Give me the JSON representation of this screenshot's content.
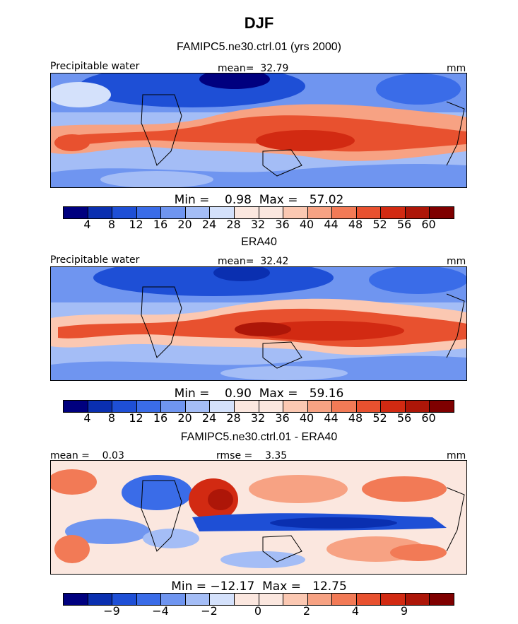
{
  "page_title": "DJF",
  "panels": [
    {
      "title": "FAMIPC5.ne30.ctrl.01 (yrs 2000)",
      "left_label": "Precipitable water",
      "center_label": "mean=  32.79",
      "unit": "mm",
      "minmax": "Min =    0.98  Max =   57.02",
      "colorbar_ticks": [
        "4",
        "8",
        "12",
        "16",
        "20",
        "24",
        "28",
        "32",
        "36",
        "40",
        "44",
        "48",
        "52",
        "56",
        "60"
      ],
      "colorbar_colors": [
        "#00007f",
        "#0a2fb0",
        "#1e4fd6",
        "#3a6ce8",
        "#6f95f0",
        "#a4bdf6",
        "#d4e1fb",
        "#fbe7df",
        "#fbc8b2",
        "#f7a283",
        "#f27a56",
        "#e8512f",
        "#d22a12",
        "#ad1608",
        "#7f0000"
      ]
    },
    {
      "title": "ERA40",
      "left_label": "Precipitable water",
      "center_label": "mean=  32.42",
      "unit": "mm",
      "minmax": "Min =    0.90  Max =   59.16",
      "colorbar_ticks": [
        "4",
        "8",
        "12",
        "16",
        "20",
        "24",
        "28",
        "32",
        "36",
        "40",
        "44",
        "48",
        "52",
        "56",
        "60"
      ],
      "colorbar_colors": [
        "#00007f",
        "#0a2fb0",
        "#1e4fd6",
        "#3a6ce8",
        "#6f95f0",
        "#a4bdf6",
        "#d4e1fb",
        "#fbe7df",
        "#fbc8b2",
        "#f7a283",
        "#f27a56",
        "#e8512f",
        "#d22a12",
        "#ad1608",
        "#7f0000"
      ]
    },
    {
      "title": "FAMIPC5.ne30.ctrl.01 - ERA40",
      "left_label": "mean =    0.03",
      "center_label": "rmse =    3.35",
      "unit": "mm",
      "minmax": "Min = −12.17  Max =   12.75",
      "colorbar_ticks": [
        "−9",
        "−4",
        "−2",
        "0",
        "2",
        "4",
        "9"
      ],
      "colorbar_colors": [
        "#00007f",
        "#0a2fb0",
        "#1e4fd6",
        "#3a6ce8",
        "#6f95f0",
        "#a4bdf6",
        "#d4e1fb",
        "#fbe7df",
        "#fbc8b2",
        "#f7a283",
        "#f27a56",
        "#e8512f",
        "#d22a12",
        "#ad1608",
        "#7f0000"
      ]
    }
  ]
}
